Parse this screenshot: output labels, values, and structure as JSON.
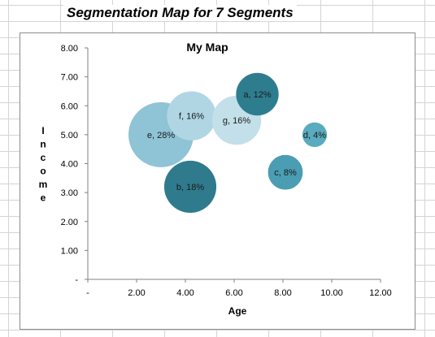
{
  "sheet": {
    "title": "Segmentation Map for 7 Segments"
  },
  "chart_data": {
    "type": "scatter",
    "bubble": true,
    "title": "My Map",
    "xlabel": "Age",
    "ylabel": "Income",
    "xlim": [
      0,
      12
    ],
    "ylim": [
      0,
      8
    ],
    "x_ticks": [
      "-",
      "2.00",
      "4.00",
      "6.00",
      "8.00",
      "10.00",
      "12.00"
    ],
    "x_tick_values": [
      0,
      2,
      4,
      6,
      8,
      10,
      12
    ],
    "y_ticks": [
      "-",
      "1.00",
      "2.00",
      "3.00",
      "4.00",
      "5.00",
      "6.00",
      "7.00",
      "8.00"
    ],
    "y_tick_values": [
      0,
      1,
      2,
      3,
      4,
      5,
      6,
      7,
      8
    ],
    "grid": false,
    "legend": "none",
    "points": [
      {
        "label": "e, 28%",
        "x": 3.0,
        "y": 5.0,
        "size": 28,
        "color": "#8fc3d6"
      },
      {
        "label": "f, 16%",
        "x": 4.25,
        "y": 5.65,
        "size": 16,
        "color": "#b0d6e4"
      },
      {
        "label": "g, 16%",
        "x": 6.1,
        "y": 5.5,
        "size": 16,
        "color": "#c3dfe9"
      },
      {
        "label": "a, 12%",
        "x": 6.95,
        "y": 6.4,
        "size": 12,
        "color": "#2e7d8f"
      },
      {
        "label": "b, 18%",
        "x": 4.2,
        "y": 3.2,
        "size": 18,
        "color": "#2f7b8d"
      },
      {
        "label": "c, 8%",
        "x": 8.1,
        "y": 3.7,
        "size": 8,
        "color": "#4a9db3"
      },
      {
        "label": "d, 4%",
        "x": 9.3,
        "y": 5.0,
        "size": 4,
        "color": "#5aabbf"
      }
    ]
  }
}
